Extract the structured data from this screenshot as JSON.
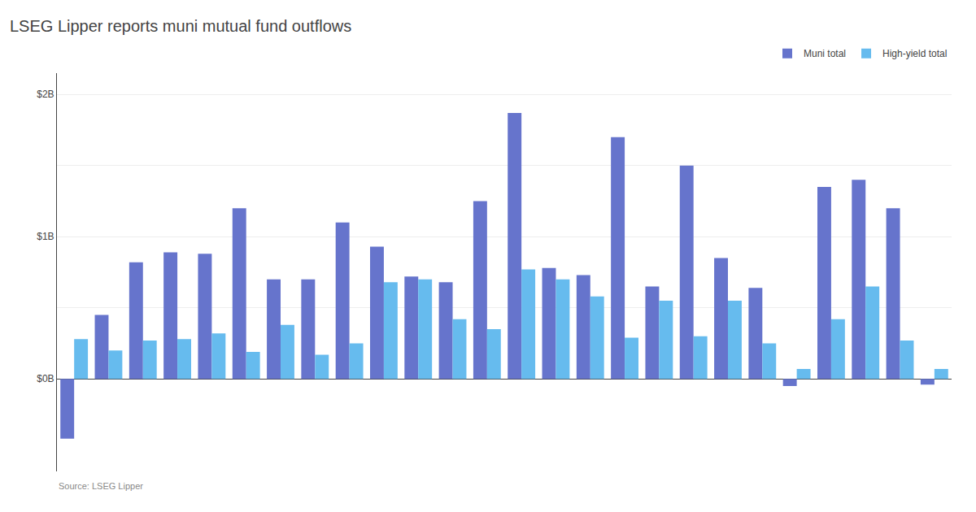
{
  "chart_data": {
    "type": "bar",
    "title": "LSEG Lipper reports muni mutual fund outflows",
    "annotations": [
      "Source: LSEG Lipper"
    ],
    "categories": [
      null,
      null,
      null,
      null,
      null,
      null,
      null,
      null,
      null,
      null,
      null,
      null,
      null,
      null,
      null,
      null,
      null,
      null,
      null,
      null,
      null,
      null,
      null,
      null,
      null,
      null
    ],
    "series": [
      {
        "name": "Muni total",
        "color": "#6674CC",
        "values": [
          -0.42,
          0.45,
          0.82,
          0.89,
          0.88,
          1.2,
          0.7,
          0.7,
          1.1,
          0.93,
          0.72,
          0.68,
          1.25,
          1.87,
          0.78,
          0.73,
          1.7,
          0.65,
          1.5,
          0.85,
          0.64,
          -0.05,
          1.35,
          1.4,
          1.2,
          -0.04
        ]
      },
      {
        "name": "High-yield total",
        "color": "#66BBEE",
        "values": [
          0.28,
          0.2,
          0.27,
          0.28,
          0.32,
          0.19,
          0.38,
          0.17,
          0.25,
          0.68,
          0.7,
          0.42,
          0.35,
          0.77,
          0.7,
          0.58,
          0.29,
          0.55,
          0.3,
          0.55,
          0.25,
          0.07,
          0.42,
          0.65,
          0.27,
          0.07
        ]
      }
    ],
    "ylim": [
      -0.65,
      2.15
    ],
    "yticks": [
      {
        "value": 0.0,
        "label": "$0B"
      },
      {
        "value": 0.5,
        "label": ""
      },
      {
        "value": 1.0,
        "label": "$1B"
      },
      {
        "value": 1.5,
        "label": ""
      },
      {
        "value": 2.0,
        "label": "$2B"
      }
    ],
    "grid": true,
    "legend": "upper right",
    "tick_labels": "y"
  }
}
